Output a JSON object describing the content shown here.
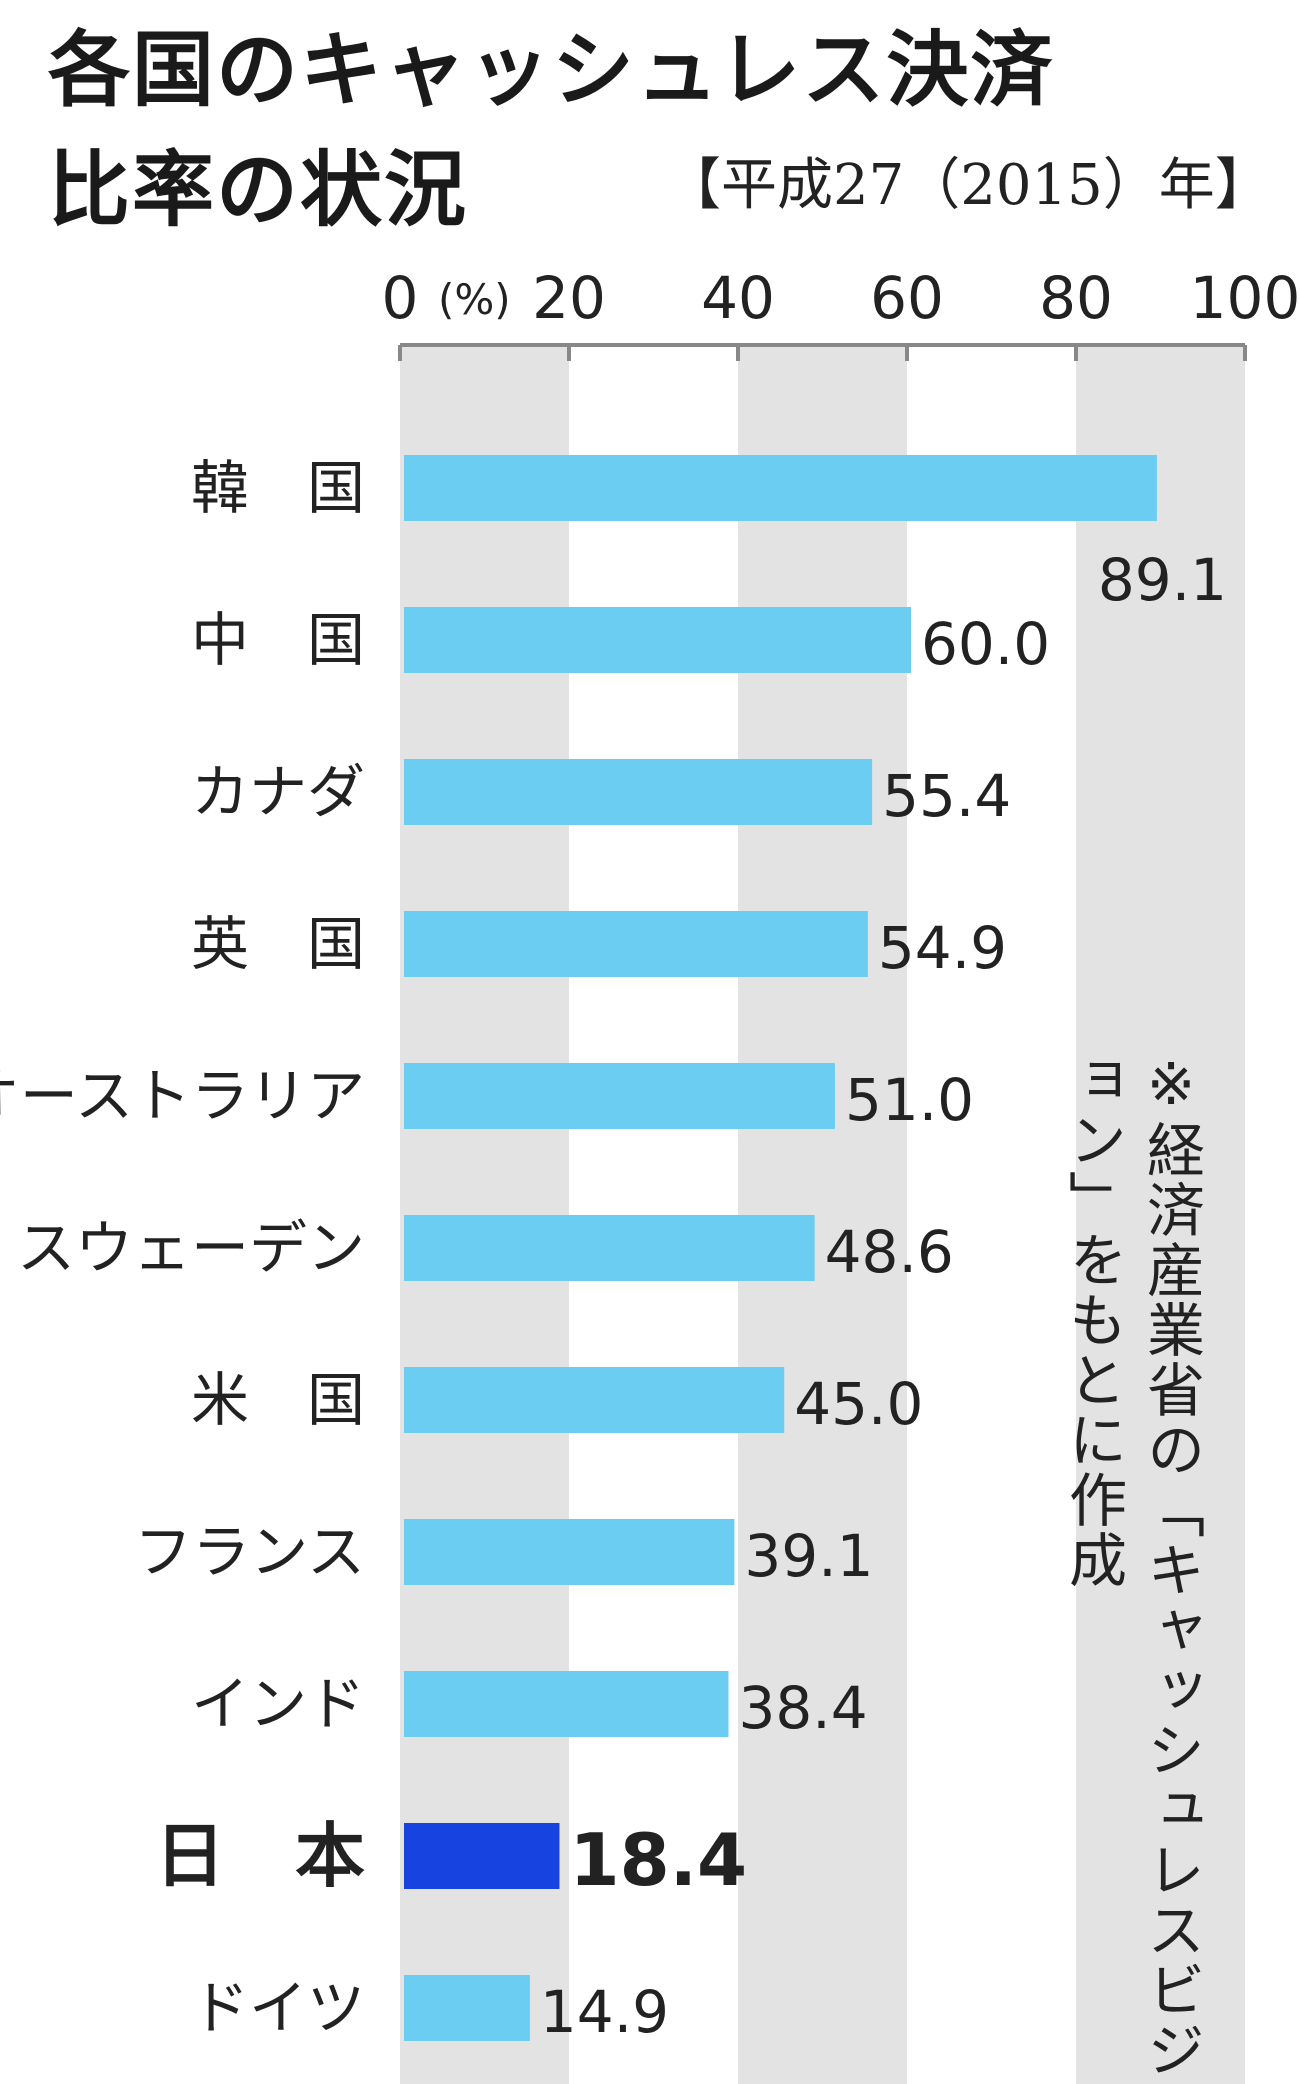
{
  "title_line1": "各国のキャッシュレス決済",
  "title_line2": "比率の状況",
  "subtitle": "【平成27（2015）年】",
  "note": "※経済産業省の「キャッシュレスビジョン」をもとに作成",
  "colors": {
    "bar": "#6ccdf3",
    "bar_highlight": "#1744e0",
    "band": "#e3e3e3",
    "axis": "#888888",
    "text": "#222222"
  },
  "chart_data": {
    "type": "bar",
    "orientation": "horizontal",
    "unit_label": "(%)",
    "xlim": [
      0,
      100
    ],
    "xticks": [
      0,
      20,
      40,
      60,
      80,
      100
    ],
    "xtick_labels": [
      "0",
      "20",
      "40",
      "60",
      "80",
      "100"
    ],
    "grid": "alternating shaded bands",
    "categories": [
      "韓　国",
      "中　国",
      "カナダ",
      "英　国",
      "オーストラリア",
      "スウェーデン",
      "米　国",
      "フランス",
      "インド",
      "日　本",
      "ドイツ"
    ],
    "values": [
      89.1,
      60.0,
      55.4,
      54.9,
      51.0,
      48.6,
      45.0,
      39.1,
      38.4,
      18.4,
      14.9
    ],
    "value_labels": [
      "89.1",
      "60.0",
      "55.4",
      "54.9",
      "51.0",
      "48.6",
      "45.0",
      "39.1",
      "38.4",
      "18.4",
      "14.9"
    ],
    "highlight": "日　本"
  }
}
